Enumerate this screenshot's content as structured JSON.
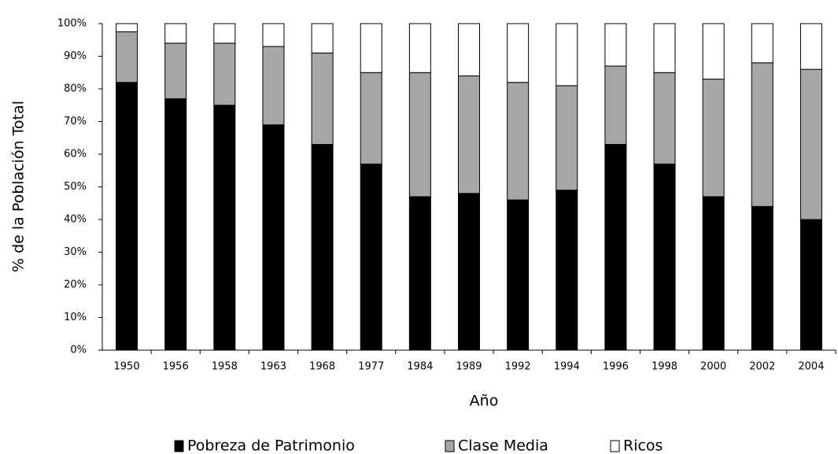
{
  "chart_data": {
    "type": "stacked_bar",
    "y_label": "% de la Población Total",
    "x_label": "Año",
    "categories": [
      "1950",
      "1956",
      "1958",
      "1963",
      "1968",
      "1977",
      "1984",
      "1989",
      "1992",
      "1994",
      "1996",
      "1998",
      "2000",
      "2002",
      "2004"
    ],
    "series": [
      {
        "name": "Pobreza de Patrimonio",
        "color": "#000000",
        "values": [
          82,
          77,
          75,
          69,
          63,
          57,
          47,
          48,
          46,
          49,
          63,
          57,
          47,
          44,
          40
        ]
      },
      {
        "name": "Clase Media",
        "color": "#a6a6a6",
        "values": [
          15.5,
          17,
          19,
          24,
          28,
          28,
          38,
          36,
          36,
          32,
          24,
          28,
          36,
          44,
          46
        ]
      },
      {
        "name": "Ricos",
        "color": "#ffffff",
        "values": [
          2.5,
          6,
          6,
          7,
          9,
          15,
          15,
          16,
          18,
          19,
          13,
          15,
          17,
          12,
          14
        ]
      }
    ],
    "ylim": [
      0,
      100
    ],
    "yticks": [
      {
        "value": 0,
        "label": "0%"
      },
      {
        "value": 10,
        "label": "10%"
      },
      {
        "value": 20,
        "label": "20%"
      },
      {
        "value": 30,
        "label": "30%"
      },
      {
        "value": 40,
        "label": "40%"
      },
      {
        "value": 50,
        "label": "50%"
      },
      {
        "value": 60,
        "label": "60%"
      },
      {
        "value": 70,
        "label": "70%"
      },
      {
        "value": 80,
        "label": "80%"
      },
      {
        "value": 90,
        "label": "90%"
      },
      {
        "value": 100,
        "label": "100%"
      }
    ],
    "grid": false,
    "legend": "bottom"
  }
}
